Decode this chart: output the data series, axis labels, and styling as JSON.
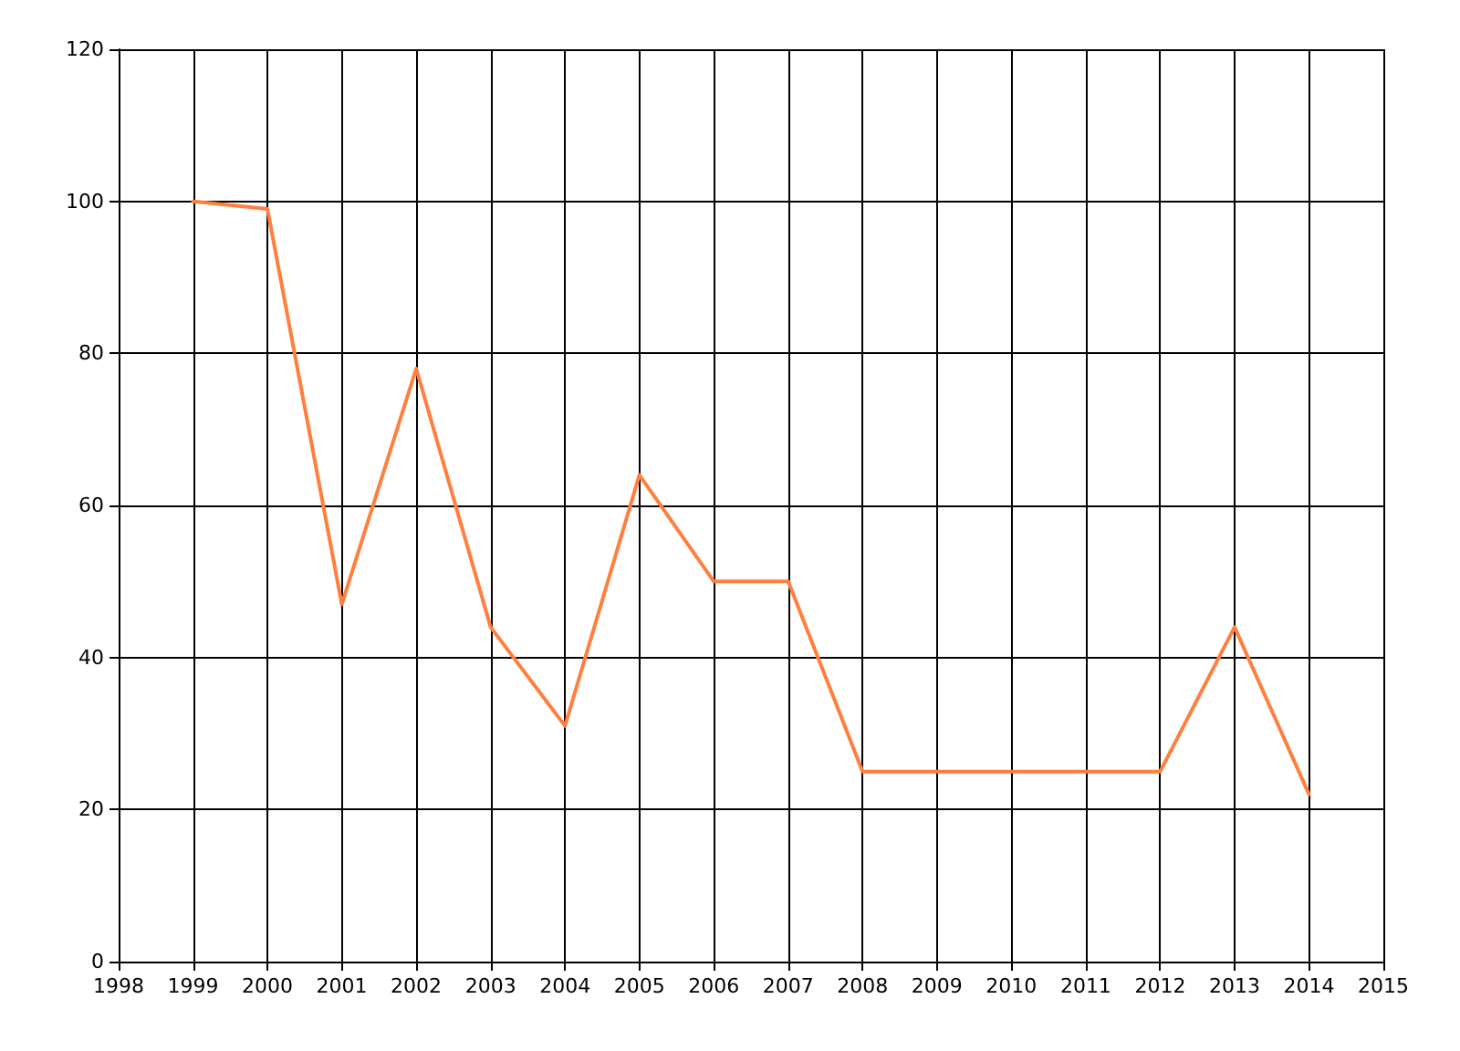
{
  "chart_data": {
    "type": "line",
    "x": [
      1999,
      2000,
      2001,
      2002,
      2003,
      2004,
      2005,
      2006,
      2007,
      2008,
      2009,
      2010,
      2011,
      2012,
      2013,
      2014
    ],
    "series": [
      {
        "color": "#ff7f3f",
        "values": [
          100,
          99,
          47,
          78,
          44,
          31,
          64,
          50,
          50,
          25,
          25,
          25,
          25,
          25,
          44,
          22
        ]
      }
    ],
    "xlim": [
      1998,
      2015
    ],
    "xticks": [
      1998,
      1999,
      2000,
      2001,
      2002,
      2003,
      2004,
      2005,
      2006,
      2007,
      2008,
      2009,
      2010,
      2011,
      2012,
      2013,
      2014,
      2015
    ],
    "ylim": [
      0,
      120
    ],
    "yticks": [
      0,
      20,
      40,
      60,
      80,
      100,
      120
    ],
    "grid": true,
    "marker": "none",
    "line_style": "solid"
  }
}
